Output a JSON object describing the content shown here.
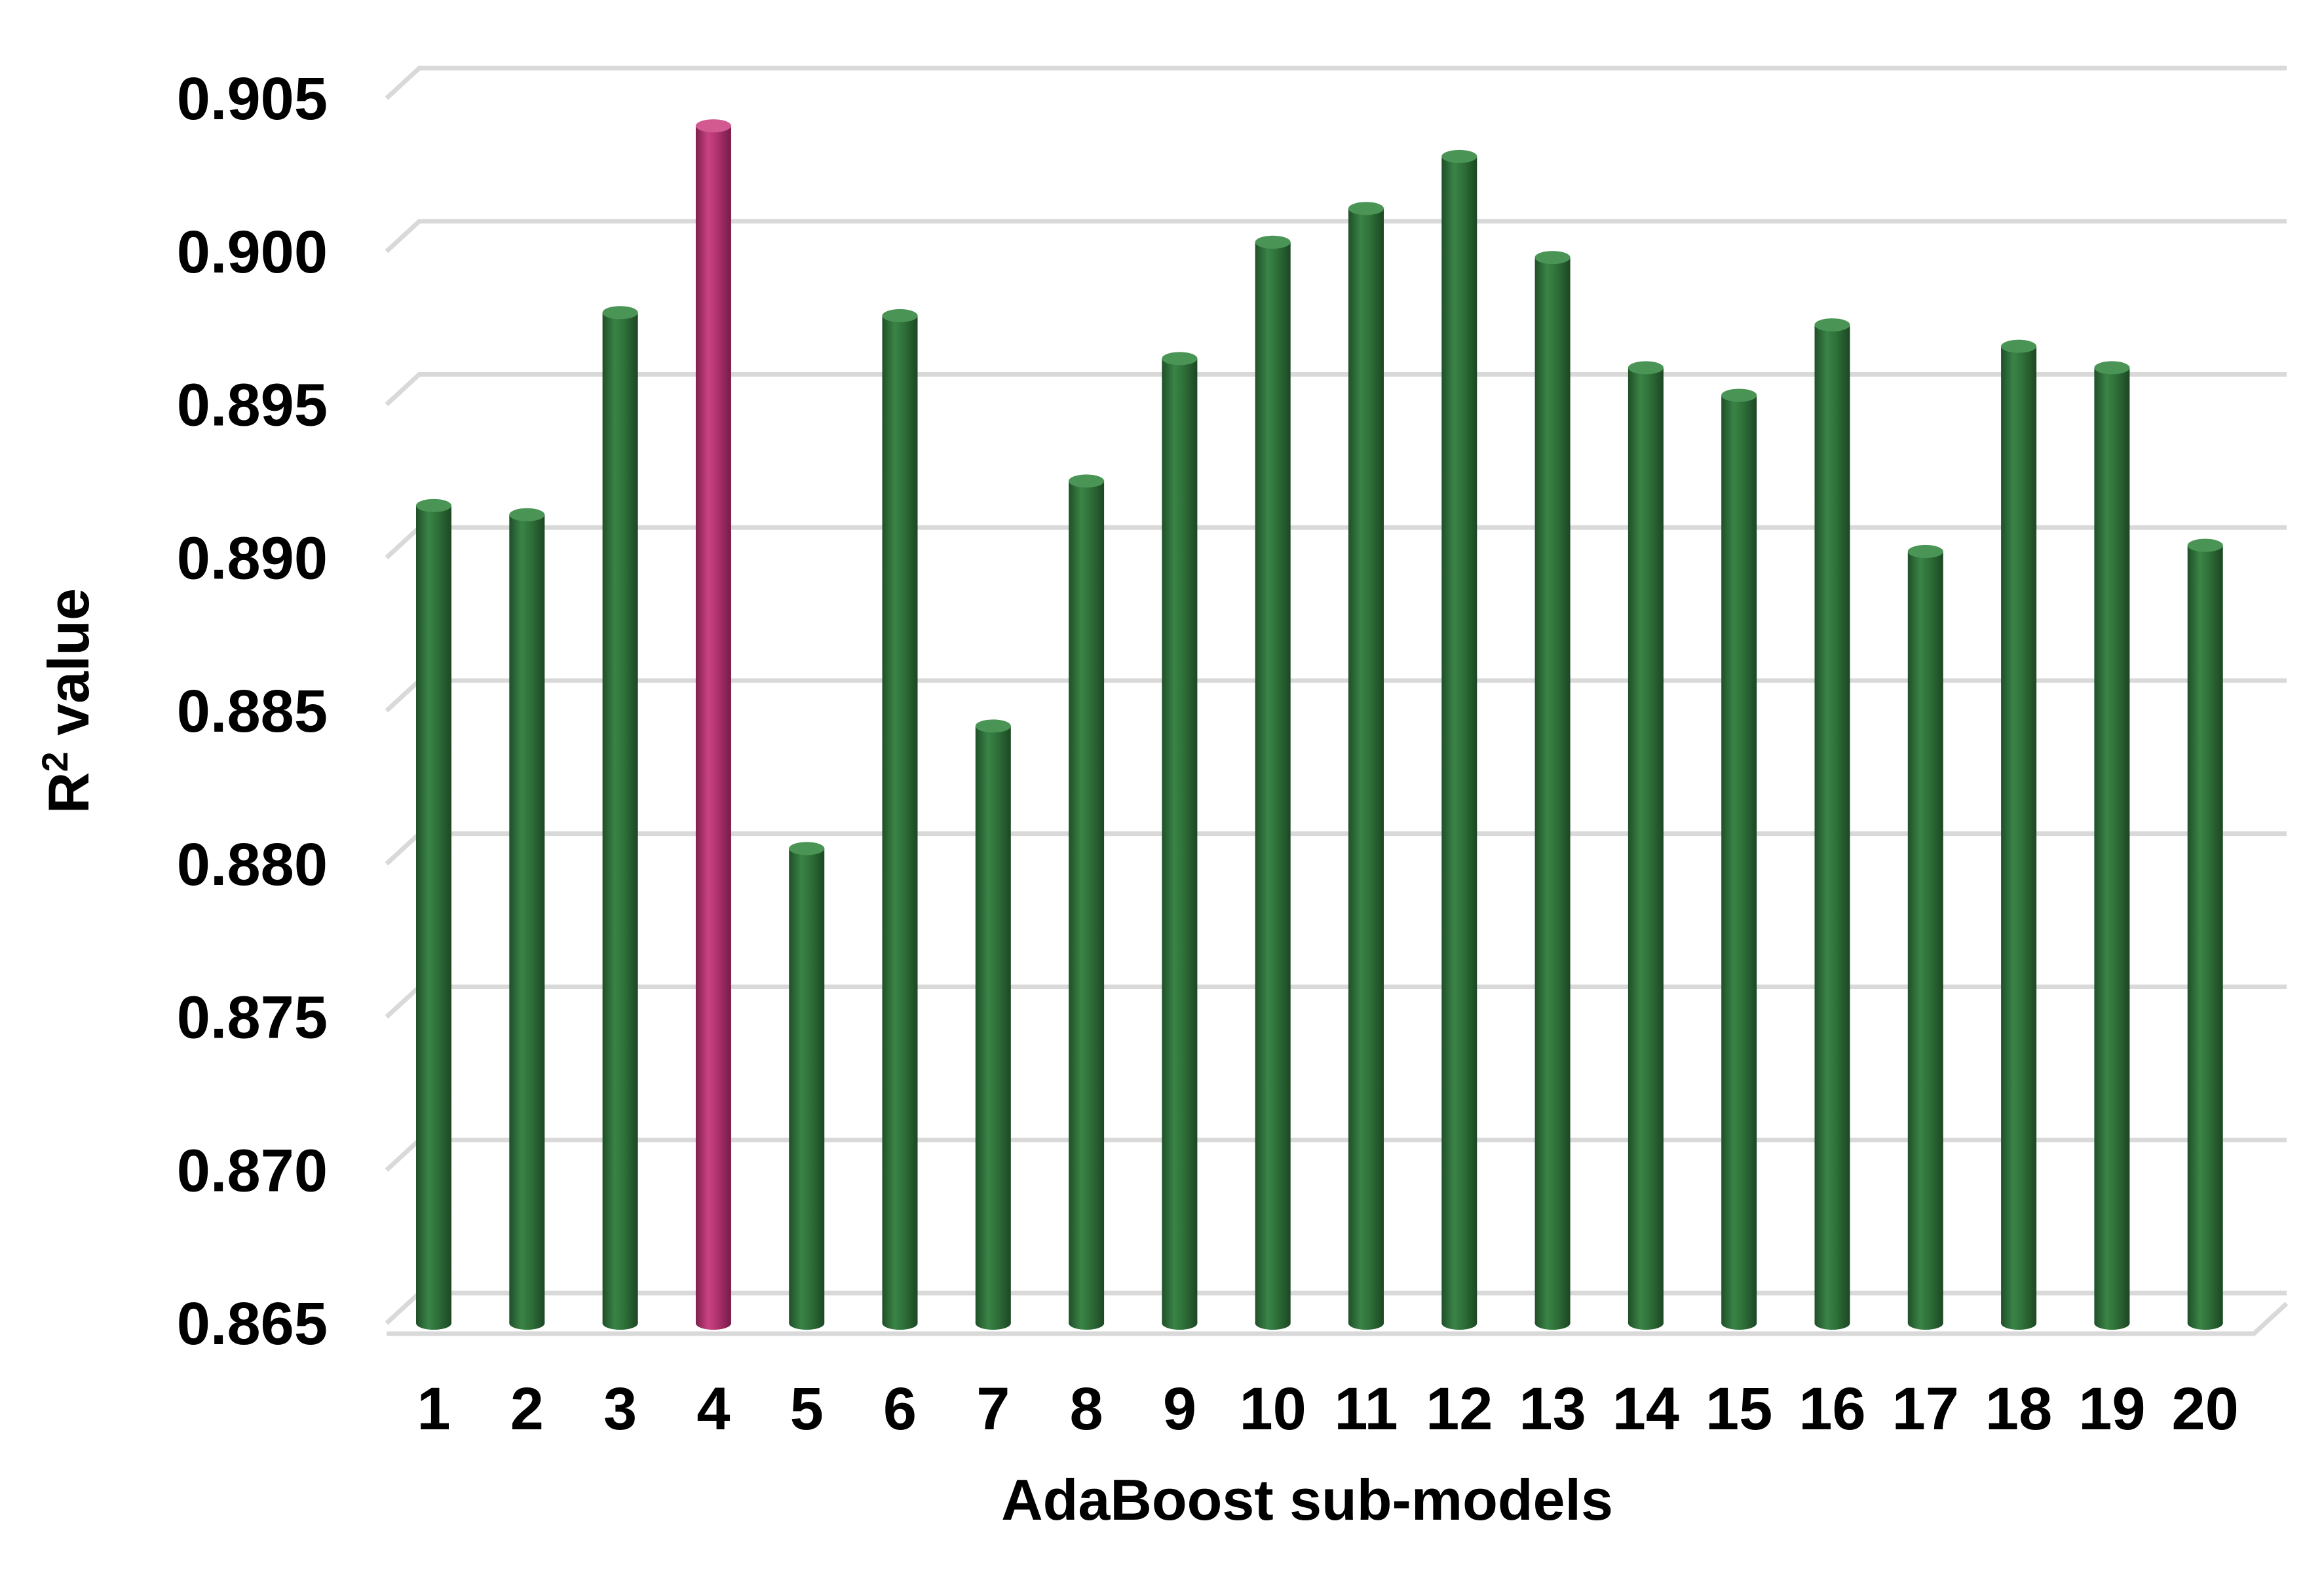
{
  "chart_data": {
    "type": "bar",
    "title": "",
    "xlabel": "AdaBoost sub-models",
    "ylabel_main": "R",
    "ylabel_sup": "2",
    "ylabel_rest": " value",
    "ylim": [
      0.865,
      0.905
    ],
    "yticks": [
      "0.865",
      "0.870",
      "0.875",
      "0.880",
      "0.885",
      "0.890",
      "0.895",
      "0.900",
      "0.905"
    ],
    "categories": [
      "1",
      "2",
      "3",
      "4",
      "5",
      "6",
      "7",
      "8",
      "9",
      "10",
      "11",
      "12",
      "13",
      "14",
      "15",
      "16",
      "17",
      "18",
      "19",
      "20"
    ],
    "values": [
      0.8917,
      0.8914,
      0.898,
      0.9041,
      0.8805,
      0.8979,
      0.8845,
      0.8925,
      0.8965,
      0.9003,
      0.9014,
      0.9031,
      0.8998,
      0.8962,
      0.8953,
      0.8976,
      0.8902,
      0.8969,
      0.8962,
      0.8904
    ],
    "highlight_index": 3,
    "grid": true,
    "legend": "none"
  },
  "colors": {
    "bar": "#2e703a",
    "bar_highlight": "#b03370",
    "grid": "#d9d9d9"
  }
}
